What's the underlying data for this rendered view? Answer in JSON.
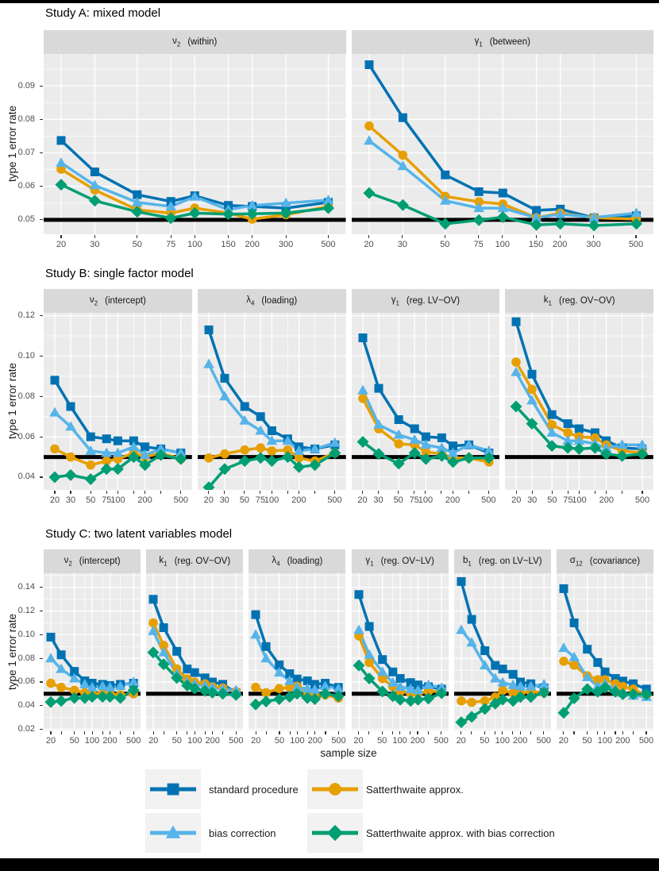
{
  "figure": {
    "ylabel": "type 1 error rate",
    "xlabel": "sample size",
    "reference_line": 0.05,
    "panel_bg": "#EBEBEB",
    "strip_bg": "#D9D9D9",
    "grid_color": "#FFFFFF",
    "reference_color": "#000000"
  },
  "series_meta": [
    {
      "id": "standard",
      "label": "standard procedure",
      "color": "#0072B2",
      "marker": "square"
    },
    {
      "id": "bias",
      "label": "bias correction",
      "color": "#56B4E9",
      "marker": "triangle"
    },
    {
      "id": "satt",
      "label": "Satterthwaite approx.",
      "color": "#E69F00",
      "marker": "circle"
    },
    {
      "id": "sattbias",
      "label": "Satterthwaite approx. with bias correction",
      "color": "#009E73",
      "marker": "diamond"
    }
  ],
  "legend": {
    "items": [
      {
        "series": "standard",
        "label": "standard procedure"
      },
      {
        "series": "satt",
        "label": "Satterthwaite approx."
      },
      {
        "series": "bias",
        "label": "bias correction"
      },
      {
        "series": "sattbias",
        "label": "Satterthwaite approx. with bias correction"
      }
    ]
  },
  "chart_data": [
    {
      "id": "study_a",
      "title": "Study A: mixed model",
      "type": "line",
      "x_scale": "log10",
      "x": [
        20,
        30,
        50,
        75,
        100,
        150,
        200,
        300,
        500
      ],
      "x_labeled": [
        20,
        30,
        50,
        75,
        100,
        150,
        200,
        300,
        500
      ],
      "ylim": [
        0.0457,
        0.0995
      ],
      "yticks": [
        0.05,
        0.06,
        0.07,
        0.08,
        0.09
      ],
      "reference_y": 0.05,
      "panels": [
        {
          "symbol": "ν",
          "sub": "2",
          "desc": "(within)",
          "series": {
            "standard": [
              0.0737,
              0.0643,
              0.0575,
              0.0555,
              0.0572,
              0.0543,
              0.054,
              0.0535,
              0.0552
            ],
            "bias": [
              0.067,
              0.0603,
              0.0552,
              0.054,
              0.0569,
              0.053,
              0.0543,
              0.055,
              0.0559
            ],
            "satt": [
              0.0651,
              0.0589,
              0.053,
              0.052,
              0.0535,
              0.052,
              0.0502,
              0.0515,
              0.054
            ],
            "sattbias": [
              0.0605,
              0.0557,
              0.0524,
              0.0505,
              0.052,
              0.0517,
              0.0518,
              0.052,
              0.0535
            ]
          }
        },
        {
          "symbol": "γ",
          "sub": "1",
          "desc": "(between)",
          "series": {
            "standard": [
              0.0963,
              0.0805,
              0.0634,
              0.0584,
              0.058,
              0.0528,
              0.0532,
              0.0506,
              0.0512
            ],
            "bias": [
              0.0736,
              0.066,
              0.0557,
              0.0535,
              0.0535,
              0.0506,
              0.0517,
              0.0507,
              0.052
            ],
            "satt": [
              0.078,
              0.0693,
              0.057,
              0.0554,
              0.0547,
              0.0506,
              0.052,
              0.0506,
              0.0502
            ],
            "sattbias": [
              0.058,
              0.0544,
              0.0488,
              0.0499,
              0.0508,
              0.0485,
              0.0488,
              0.0483,
              0.0488
            ]
          }
        }
      ]
    },
    {
      "id": "study_b",
      "title": "Study B: single factor model",
      "type": "line",
      "x_scale": "log10",
      "x": [
        20,
        30,
        50,
        75,
        100,
        150,
        200,
        300,
        500
      ],
      "x_labeled": [
        20,
        30,
        50,
        75,
        100,
        200,
        500
      ],
      "ylim": [
        0.0337,
        0.1214
      ],
      "yticks": [
        0.04,
        0.06,
        0.08,
        0.1,
        0.12
      ],
      "reference_y": 0.05,
      "panels": [
        {
          "symbol": "ν",
          "sub": "2",
          "desc": "(intercept)",
          "series": {
            "standard": [
              0.088,
              0.075,
              0.06,
              0.059,
              0.058,
              0.058,
              0.055,
              0.054,
              0.052
            ],
            "bias": [
              0.072,
              0.065,
              0.053,
              0.052,
              0.052,
              0.055,
              0.051,
              0.054,
              0.052
            ],
            "satt": [
              0.054,
              0.05,
              0.046,
              0.048,
              0.049,
              0.052,
              0.05,
              0.052,
              0.049
            ],
            "sattbias": [
              0.04,
              0.041,
              0.039,
              0.044,
              0.044,
              0.05,
              0.046,
              0.051,
              0.049
            ]
          }
        },
        {
          "symbol": "λ",
          "sub": "4",
          "desc": "(loading)",
          "series": {
            "standard": [
              0.113,
              0.089,
              0.075,
              0.07,
              0.063,
              0.059,
              0.055,
              0.054,
              0.056
            ],
            "bias": [
              0.096,
              0.08,
              0.068,
              0.063,
              0.058,
              0.058,
              0.053,
              0.054,
              0.057
            ],
            "satt": [
              0.0495,
              0.0515,
              0.0535,
              0.0545,
              0.053,
              0.0535,
              0.0495,
              0.048,
              0.052
            ],
            "sattbias": [
              0.035,
              0.044,
              0.048,
              0.0495,
              0.048,
              0.05,
              0.045,
              0.046,
              0.052
            ]
          }
        },
        {
          "symbol": "γ",
          "sub": "1",
          "desc": "(reg. LV~OV)",
          "series": {
            "standard": [
              0.109,
              0.084,
              0.0685,
              0.064,
              0.06,
              0.0595,
              0.0555,
              0.056,
              0.052
            ],
            "bias": [
              0.083,
              0.066,
              0.061,
              0.0585,
              0.056,
              0.0545,
              0.052,
              0.056,
              0.053
            ],
            "satt": [
              0.079,
              0.064,
              0.0565,
              0.056,
              0.0525,
              0.0515,
              0.0495,
              0.0495,
              0.0475
            ],
            "sattbias": [
              0.0575,
              0.0515,
              0.0467,
              0.052,
              0.049,
              0.0505,
              0.0475,
              0.0495,
              0.0495
            ]
          }
        },
        {
          "symbol": "k",
          "sub": "1",
          "desc": "(reg. OV~OV)",
          "series": {
            "standard": [
              0.117,
              0.091,
              0.071,
              0.0665,
              0.064,
              0.062,
              0.058,
              0.0545,
              0.054
            ],
            "bias": [
              0.092,
              0.078,
              0.062,
              0.058,
              0.058,
              0.0565,
              0.0545,
              0.056,
              0.056
            ],
            "satt": [
              0.097,
              0.0835,
              0.066,
              0.062,
              0.06,
              0.0595,
              0.056,
              0.053,
              0.052
            ],
            "sattbias": [
              0.075,
              0.0665,
              0.0555,
              0.0545,
              0.054,
              0.0545,
              0.0515,
              0.0505,
              0.0515
            ]
          }
        }
      ]
    },
    {
      "id": "study_c",
      "title": "Study C: two latent variables model",
      "type": "line",
      "x_scale": "log10",
      "x": [
        20,
        30,
        50,
        75,
        100,
        150,
        200,
        300,
        500
      ],
      "x_labeled": [
        20,
        50,
        100,
        200,
        500
      ],
      "ylim": [
        0.019,
        0.152
      ],
      "yticks": [
        0.02,
        0.04,
        0.06,
        0.08,
        0.1,
        0.12,
        0.14
      ],
      "reference_y": 0.05,
      "panels": [
        {
          "symbol": "ν",
          "sub": "2",
          "desc": "(intercept)",
          "series": {
            "standard": [
              0.098,
              0.083,
              0.069,
              0.061,
              0.059,
              0.058,
              0.057,
              0.058,
              0.059
            ],
            "bias": [
              0.08,
              0.071,
              0.063,
              0.058,
              0.0555,
              0.0565,
              0.0555,
              0.0565,
              0.06
            ],
            "satt": [
              0.059,
              0.0555,
              0.053,
              0.051,
              0.05,
              0.05,
              0.05,
              0.049,
              0.05
            ],
            "sattbias": [
              0.043,
              0.044,
              0.0465,
              0.0465,
              0.0475,
              0.0475,
              0.0475,
              0.0465,
              0.053
            ]
          }
        },
        {
          "symbol": "k",
          "sub": "1",
          "desc": "(reg. OV~OV)",
          "series": {
            "standard": [
              0.13,
              0.106,
              0.086,
              0.071,
              0.068,
              0.0635,
              0.06,
              0.058,
              0.051
            ],
            "bias": [
              0.103,
              0.085,
              0.067,
              0.06,
              0.058,
              0.057,
              0.0555,
              0.054,
              0.053
            ],
            "satt": [
              0.11,
              0.091,
              0.071,
              0.0625,
              0.06,
              0.0585,
              0.056,
              0.055,
              0.052
            ],
            "sattbias": [
              0.085,
              0.075,
              0.0635,
              0.057,
              0.0545,
              0.0525,
              0.051,
              0.05,
              0.049
            ]
          }
        },
        {
          "symbol": "λ",
          "sub": "4",
          "desc": "(loading)",
          "series": {
            "standard": [
              0.117,
              0.09,
              0.0745,
              0.067,
              0.0625,
              0.061,
              0.058,
              0.059,
              0.0555
            ],
            "bias": [
              0.1,
              0.08,
              0.068,
              0.061,
              0.0555,
              0.0545,
              0.0535,
              0.0565,
              0.0545
            ],
            "satt": [
              0.0555,
              0.051,
              0.0545,
              0.0555,
              0.0565,
              0.051,
              0.048,
              0.049,
              0.0465
            ],
            "sattbias": [
              0.041,
              0.0435,
              0.0455,
              0.0475,
              0.05,
              0.0465,
              0.0455,
              0.05,
              0.048
            ]
          }
        },
        {
          "symbol": "γ",
          "sub": "1",
          "desc": "(reg. OV~LV)",
          "series": {
            "standard": [
              0.134,
              0.107,
              0.079,
              0.0685,
              0.063,
              0.0595,
              0.0575,
              0.056,
              0.054
            ],
            "bias": [
              0.104,
              0.083,
              0.0685,
              0.0595,
              0.056,
              0.054,
              0.053,
              0.0575,
              0.055
            ],
            "satt": [
              0.099,
              0.0765,
              0.063,
              0.056,
              0.052,
              0.0505,
              0.0505,
              0.052,
              0.052
            ],
            "sattbias": [
              0.074,
              0.063,
              0.052,
              0.048,
              0.045,
              0.044,
              0.045,
              0.046,
              0.0505
            ]
          }
        },
        {
          "symbol": "b",
          "sub": "1",
          "desc": "(reg. on LV~LV)",
          "series": {
            "standard": [
              0.145,
              0.113,
              0.0865,
              0.074,
              0.071,
              0.0665,
              0.06,
              0.0585,
              0.055
            ],
            "bias": [
              0.104,
              0.0933,
              0.074,
              0.063,
              0.0596,
              0.0574,
              0.0563,
              0.0563,
              0.058
            ],
            "satt": [
              0.044,
              0.0428,
              0.044,
              0.0473,
              0.0529,
              0.0507,
              0.0507,
              0.0518,
              0.051
            ],
            "sattbias": [
              0.026,
              0.0305,
              0.0372,
              0.0417,
              0.0451,
              0.044,
              0.0473,
              0.0473,
              0.051
            ]
          }
        },
        {
          "symbol": "σ",
          "sub": "12",
          "desc": "(covariance)",
          "series": {
            "standard": [
              0.139,
              0.11,
              0.0877,
              0.0765,
              0.0686,
              0.063,
              0.0608,
              0.0585,
              0.054
            ],
            "bias": [
              0.0888,
              0.081,
              0.0641,
              0.0563,
              0.0585,
              0.054,
              0.0507,
              0.0484,
              0.0473
            ],
            "satt": [
              0.0776,
              0.0742,
              0.0652,
              0.0619,
              0.0619,
              0.0585,
              0.0563,
              0.054,
              0.0484
            ],
            "sattbias": [
              0.0339,
              0.0462,
              0.054,
              0.0518,
              0.0552,
              0.0518,
              0.0496,
              0.0496,
              0.0496
            ]
          }
        }
      ]
    }
  ]
}
